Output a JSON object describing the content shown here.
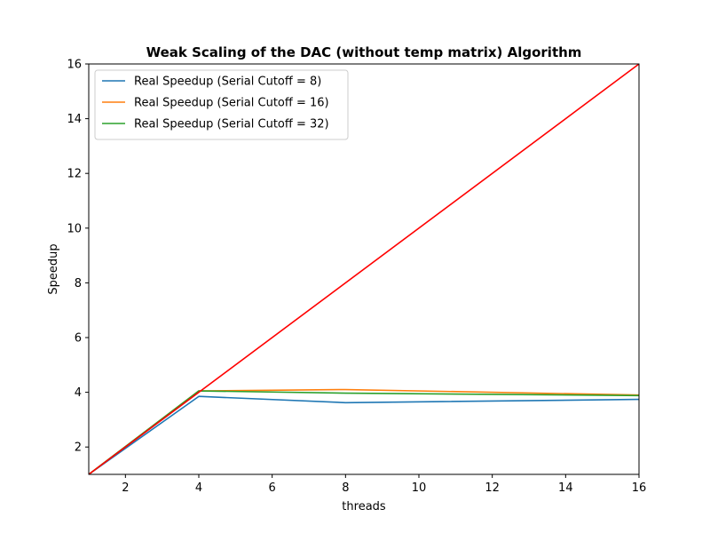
{
  "chart_data": {
    "type": "line",
    "title": "Weak Scaling of the DAC (without temp matrix) Algorithm",
    "xlabel": "threads",
    "ylabel": "Speedup",
    "xlim": [
      1,
      16
    ],
    "ylim": [
      1,
      16
    ],
    "xticks": [
      2,
      4,
      6,
      8,
      10,
      12,
      14,
      16
    ],
    "yticks": [
      2,
      4,
      6,
      8,
      10,
      12,
      14,
      16
    ],
    "grid": false,
    "legend_position": "top-left",
    "series": [
      {
        "name": "Real Speedup (Serial Cutoff = 8)",
        "color": "#1f77b4",
        "x": [
          1,
          4,
          8,
          16
        ],
        "y": [
          1.0,
          3.85,
          3.62,
          3.74
        ],
        "in_legend": true
      },
      {
        "name": "Real Speedup (Serial Cutoff = 16)",
        "color": "#ff7f0e",
        "x": [
          1,
          4,
          8,
          16
        ],
        "y": [
          1.0,
          4.05,
          4.1,
          3.9
        ],
        "in_legend": true
      },
      {
        "name": "Real Speedup (Serial Cutoff = 32)",
        "color": "#2ca02c",
        "x": [
          1,
          4,
          8,
          16
        ],
        "y": [
          1.0,
          4.05,
          3.97,
          3.88
        ],
        "in_legend": true
      },
      {
        "name": "",
        "color": "#ff0000",
        "x": [
          1,
          16
        ],
        "y": [
          1,
          16
        ],
        "in_legend": false
      }
    ]
  }
}
